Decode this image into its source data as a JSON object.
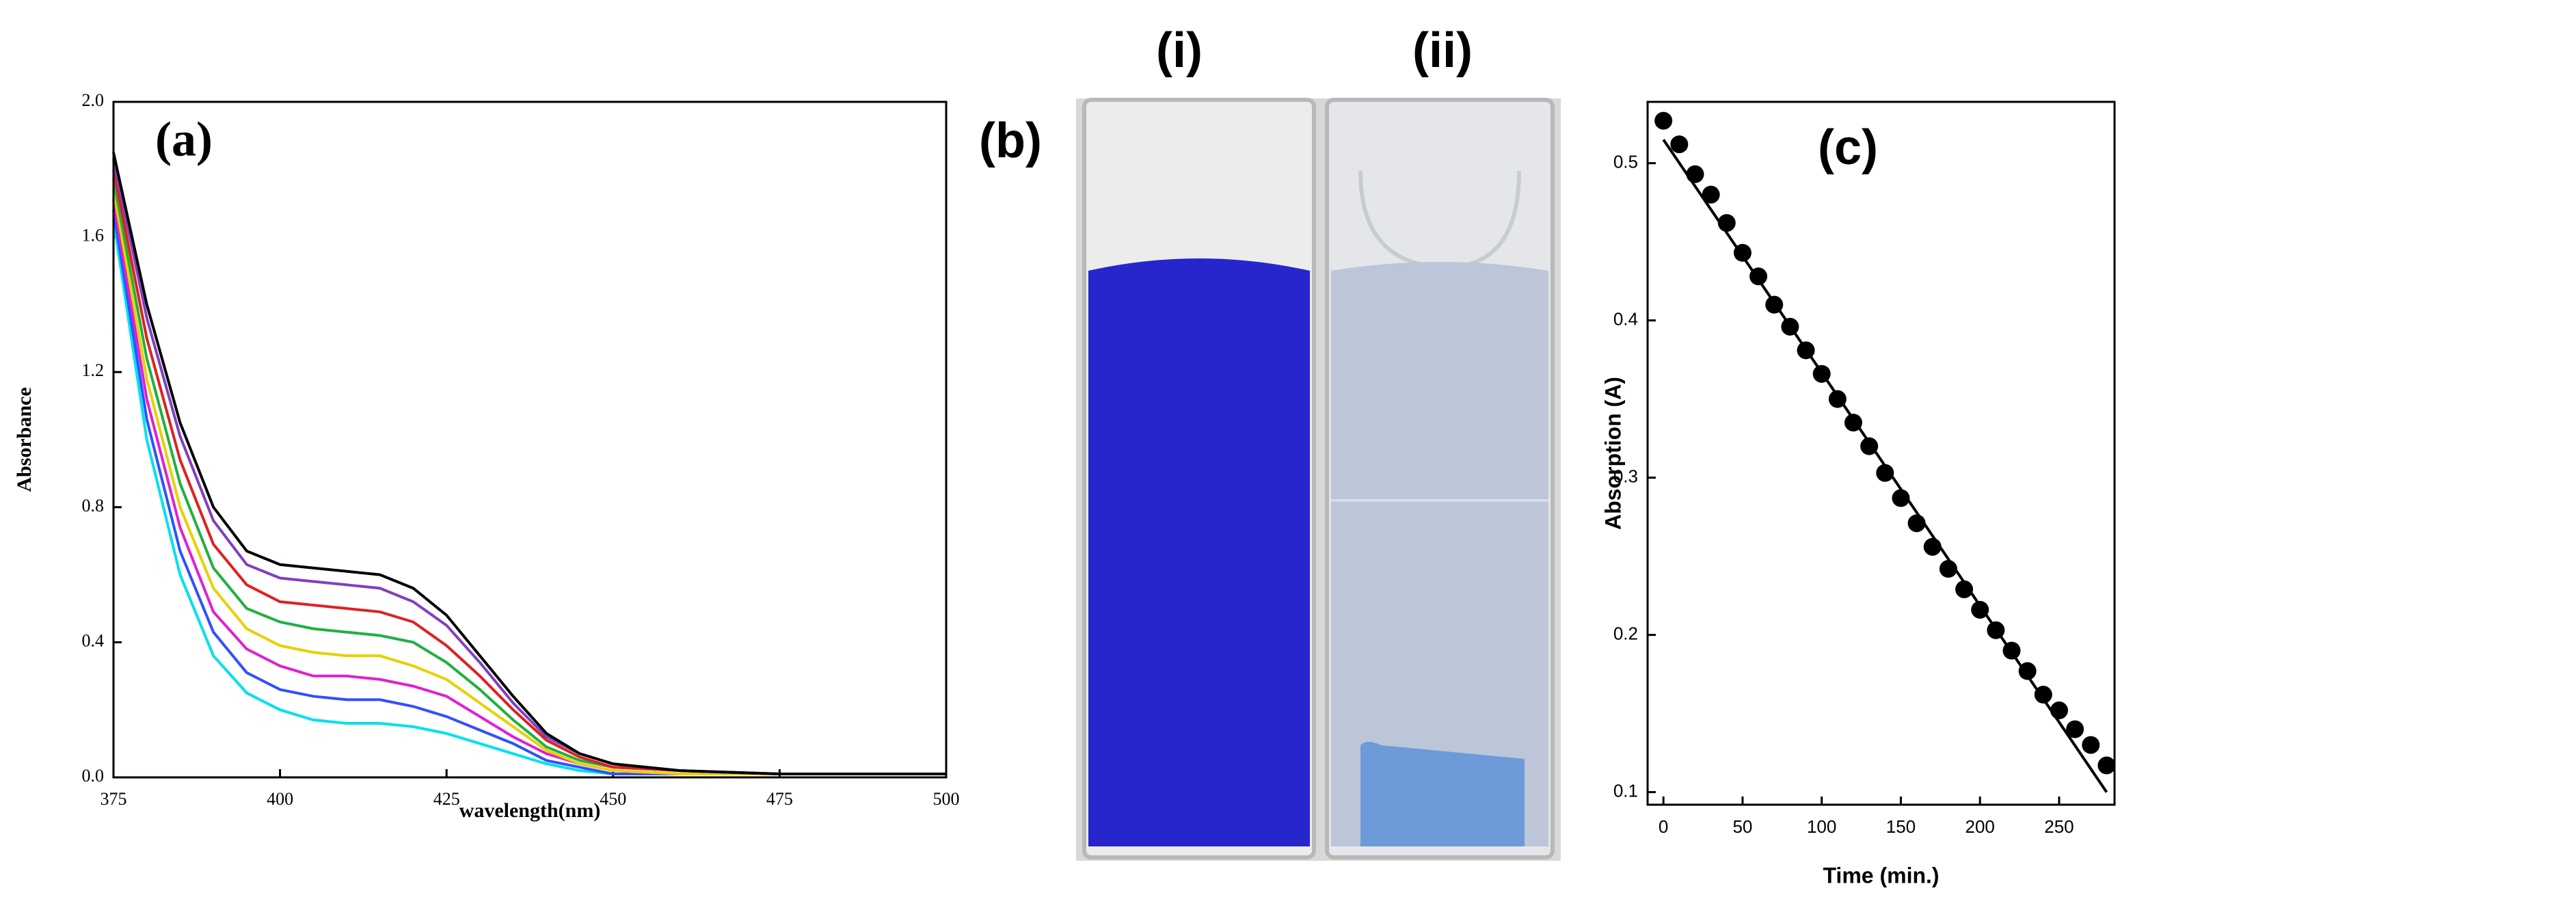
{
  "chart_data": [
    {
      "type": "line",
      "annotation": "(a)",
      "xlabel": "wavelength(nm)",
      "ylabel": "Absorbance",
      "x": [
        375,
        380,
        385,
        390,
        395,
        400,
        405,
        410,
        415,
        420,
        425,
        430,
        435,
        440,
        445,
        450,
        460,
        475,
        500
      ],
      "xlim": [
        375,
        500
      ],
      "xticks": [
        375,
        400,
        425,
        450,
        475,
        500
      ],
      "ylim": [
        0,
        2
      ],
      "yticks": [
        {
          "value": 0,
          "label": "0.0"
        },
        0.4,
        0.8,
        1.2,
        1.6,
        {
          "value": 2,
          "label": "2.0"
        }
      ],
      "series": [
        {
          "color": "#00e0ee",
          "values": [
            1.65,
            1.0,
            0.6,
            0.36,
            0.25,
            0.2,
            0.17,
            0.16,
            0.16,
            0.15,
            0.13,
            0.1,
            0.07,
            0.04,
            0.02,
            0.01,
            0.01,
            0.01,
            0.01
          ]
        },
        {
          "color": "#3050ff",
          "values": [
            1.68,
            1.06,
            0.67,
            0.43,
            0.31,
            0.26,
            0.24,
            0.23,
            0.23,
            0.21,
            0.18,
            0.14,
            0.1,
            0.05,
            0.03,
            0.01,
            0.01,
            0.01,
            0.01
          ]
        },
        {
          "color": "#e020d0",
          "values": [
            1.71,
            1.12,
            0.74,
            0.49,
            0.38,
            0.33,
            0.3,
            0.3,
            0.29,
            0.27,
            0.24,
            0.18,
            0.12,
            0.07,
            0.04,
            0.02,
            0.01,
            0.01,
            0.01
          ]
        },
        {
          "color": "#e8d000",
          "values": [
            1.74,
            1.18,
            0.8,
            0.56,
            0.44,
            0.39,
            0.37,
            0.36,
            0.36,
            0.33,
            0.29,
            0.22,
            0.15,
            0.08,
            0.04,
            0.02,
            0.01,
            0.01,
            0.01
          ]
        },
        {
          "color": "#20b040",
          "values": [
            1.77,
            1.24,
            0.87,
            0.62,
            0.5,
            0.46,
            0.44,
            0.43,
            0.42,
            0.4,
            0.34,
            0.26,
            0.17,
            0.09,
            0.05,
            0.03,
            0.02,
            0.01,
            0.01
          ]
        },
        {
          "color": "#e02020",
          "values": [
            1.8,
            1.3,
            0.94,
            0.69,
            0.57,
            0.52,
            0.51,
            0.5,
            0.49,
            0.46,
            0.39,
            0.3,
            0.2,
            0.11,
            0.06,
            0.03,
            0.02,
            0.01,
            0.01
          ]
        },
        {
          "color": "#8040c0",
          "values": [
            1.83,
            1.36,
            1.01,
            0.76,
            0.63,
            0.59,
            0.58,
            0.57,
            0.56,
            0.52,
            0.45,
            0.34,
            0.22,
            0.12,
            0.07,
            0.04,
            0.02,
            0.01,
            0.01
          ]
        },
        {
          "color": "#000000",
          "values": [
            1.85,
            1.4,
            1.05,
            0.8,
            0.67,
            0.63,
            0.62,
            0.61,
            0.6,
            0.56,
            0.48,
            0.36,
            0.24,
            0.13,
            0.07,
            0.04,
            0.02,
            0.01,
            0.01
          ]
        }
      ]
    },
    {
      "type": "scatter",
      "annotation": "(c)",
      "xlabel": "Time (min.)",
      "ylabel": "Absorption (A)",
      "xlim": [
        -10,
        285
      ],
      "xticks": [
        0,
        50,
        100,
        150,
        200,
        250
      ],
      "ylim": [
        0.092,
        0.539
      ],
      "yticks": [
        0.1,
        0.2,
        0.3,
        0.4,
        0.5
      ],
      "series": [
        {
          "style": "points",
          "color": "#000000",
          "x": [
            0,
            10,
            20,
            30,
            40,
            50,
            60,
            70,
            80,
            90,
            100,
            110,
            120,
            130,
            140,
            150,
            160,
            170,
            180,
            190,
            200,
            210,
            220,
            230,
            240,
            250,
            260,
            270,
            280
          ],
          "values": [
            0.527,
            0.512,
            0.493,
            0.48,
            0.462,
            0.443,
            0.428,
            0.41,
            0.396,
            0.381,
            0.366,
            0.35,
            0.335,
            0.32,
            0.303,
            0.287,
            0.271,
            0.256,
            0.242,
            0.229,
            0.216,
            0.203,
            0.19,
            0.177,
            0.162,
            0.152,
            0.14,
            0.13,
            0.117
          ]
        },
        {
          "style": "line",
          "color": "#000000",
          "x": [
            0,
            280
          ],
          "values": [
            0.515,
            0.1
          ]
        }
      ]
    }
  ],
  "photo": {
    "label": "(b)",
    "captions": [
      "(i)",
      "(ii)"
    ]
  }
}
